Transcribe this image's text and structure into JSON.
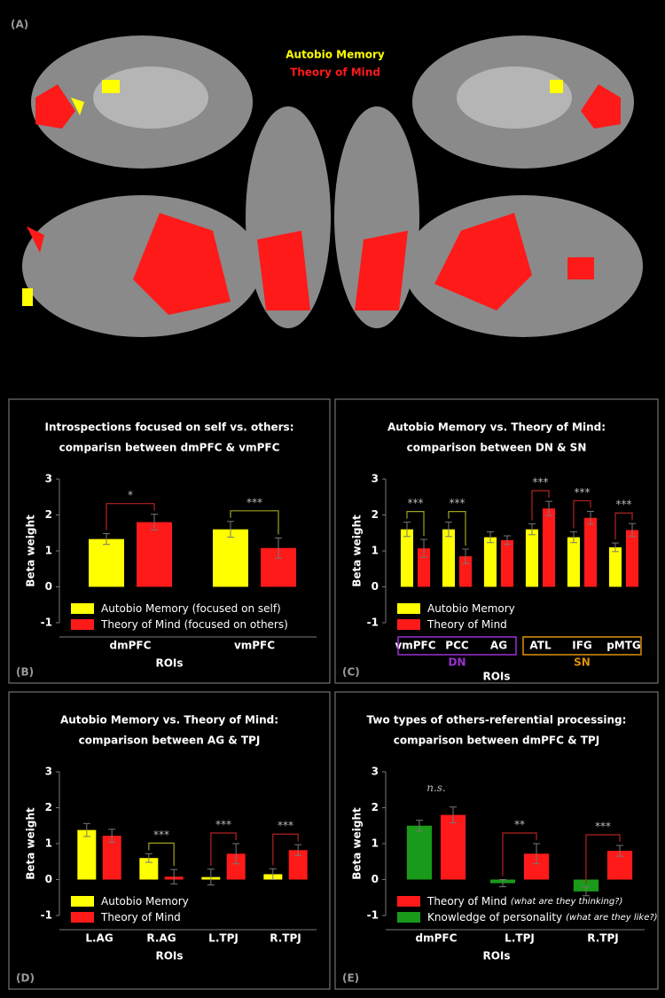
{
  "figure": {
    "panel_label": "(A)",
    "legend": [
      {
        "label": "Autobio Memory",
        "color": "#ffff00"
      },
      {
        "label": "Theory of Mind",
        "color": "#ff1a1a"
      }
    ]
  },
  "chart_data": [
    {
      "type": "bar",
      "panel_label": "(B)",
      "title": [
        "Introspections focused on self vs. others:",
        "comparisn between dmPFC & vmPFC"
      ],
      "ylabel": "Beta weight",
      "xlabel": "ROIs",
      "ylim": [
        -1,
        3
      ],
      "yticks": [
        -1,
        0,
        1,
        2,
        3
      ],
      "categories": [
        "dmPFC",
        "vmPFC"
      ],
      "series": [
        {
          "name": "Autobio Memory (focused on self)",
          "color": "#ffff00",
          "values": [
            1.33,
            1.6
          ],
          "errors": [
            0.15,
            0.22
          ]
        },
        {
          "name": "Theory of Mind (focused on others)",
          "color": "#ff1a1a",
          "values": [
            1.8,
            1.08
          ],
          "errors": [
            0.22,
            0.28
          ]
        }
      ],
      "significance": [
        "*",
        "***"
      ],
      "significance_colors": [
        "#b22222",
        "#a0a020"
      ]
    },
    {
      "type": "bar",
      "panel_label": "(C)",
      "title": [
        "Autobio Memory vs. Theory of Mind:",
        "comparison between DN & SN"
      ],
      "ylabel": "Beta weight",
      "xlabel": "ROIs",
      "ylim": [
        -1,
        3
      ],
      "yticks": [
        -1,
        0,
        1,
        2,
        3
      ],
      "groups": [
        {
          "name": "DN",
          "color": "#9b30d0",
          "categories": [
            "vmPFC",
            "PCC",
            "AG"
          ]
        },
        {
          "name": "SN",
          "color": "#e0900a",
          "categories": [
            "ATL",
            "IFG",
            "pMTG"
          ]
        }
      ],
      "series": [
        {
          "name": "Autobio Memory",
          "color": "#ffff00",
          "values": [
            1.6,
            1.6,
            1.38,
            1.6,
            1.38,
            1.1
          ],
          "errors": [
            0.2,
            0.2,
            0.15,
            0.15,
            0.15,
            0.12
          ]
        },
        {
          "name": "Theory of Mind",
          "color": "#ff1a1a",
          "values": [
            1.07,
            0.85,
            1.3,
            2.18,
            1.92,
            1.58
          ],
          "errors": [
            0.25,
            0.2,
            0.12,
            0.2,
            0.18,
            0.18
          ]
        }
      ],
      "significance": [
        "***",
        "***",
        null,
        "***",
        "***",
        "***"
      ],
      "significance_colors": [
        "#a0a020",
        "#a0a020",
        null,
        "#b22222",
        "#b22222",
        "#b22222"
      ]
    },
    {
      "type": "bar",
      "panel_label": "(D)",
      "title": [
        "Autobio Memory vs. Theory of Mind:",
        "comparison between AG & TPJ"
      ],
      "ylabel": "Beta weight",
      "xlabel": "ROIs",
      "ylim": [
        -1,
        3
      ],
      "yticks": [
        -1,
        0,
        1,
        2,
        3
      ],
      "categories": [
        "L.AG",
        "R.AG",
        "L.TPJ",
        "R.TPJ"
      ],
      "series": [
        {
          "name": "Autobio Memory",
          "color": "#ffff00",
          "values": [
            1.38,
            0.6,
            0.07,
            0.15
          ],
          "errors": [
            0.18,
            0.12,
            0.22,
            0.15
          ]
        },
        {
          "name": "Theory of Mind",
          "color": "#ff1a1a",
          "values": [
            1.22,
            0.08,
            0.72,
            0.82
          ],
          "errors": [
            0.18,
            0.2,
            0.28,
            0.15
          ]
        }
      ],
      "significance": [
        null,
        "***",
        "***",
        "***"
      ],
      "significance_colors": [
        null,
        "#a0a020",
        "#b22222",
        "#b22222"
      ]
    },
    {
      "type": "bar",
      "panel_label": "(E)",
      "title": [
        "Two types of others-referential processing:",
        "comparison between dmPFC & TPJ"
      ],
      "ylabel": "Beta weight",
      "xlabel": "ROIs",
      "ylim": [
        -1,
        3
      ],
      "yticks": [
        -1,
        0,
        1,
        2,
        3
      ],
      "categories": [
        "dmPFC",
        "L.TPJ",
        "R.TPJ"
      ],
      "series": [
        {
          "name": "Knowledge of personality",
          "note": "(what are they like?)",
          "color": "#1a9a1a",
          "values": [
            1.5,
            -0.1,
            -0.33
          ],
          "errors": [
            0.15,
            0.1,
            0.12
          ]
        },
        {
          "name": "Theory of Mind",
          "note": "(what are they thinking?)",
          "color": "#ff1a1a",
          "values": [
            1.8,
            0.72,
            0.8
          ],
          "errors": [
            0.22,
            0.28,
            0.15
          ]
        }
      ],
      "legend_reversed": true,
      "significance": [
        "n.s.",
        "**",
        "***"
      ],
      "significance_colors": [
        null,
        "#b22222",
        "#b22222"
      ]
    }
  ]
}
